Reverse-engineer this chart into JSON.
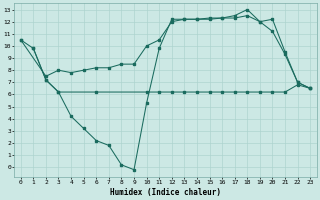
{
  "bg_color": "#cce8e4",
  "grid_color": "#aed4cf",
  "line_color": "#1a6b5e",
  "xlabel": "Humidex (Indice chaleur)",
  "xlim": [
    -0.5,
    23.5
  ],
  "ylim": [
    -0.8,
    13.5
  ],
  "xticks": [
    0,
    1,
    2,
    3,
    4,
    5,
    6,
    7,
    8,
    9,
    10,
    11,
    12,
    13,
    14,
    15,
    16,
    17,
    18,
    19,
    20,
    21,
    22,
    23
  ],
  "yticks": [
    0,
    1,
    2,
    3,
    4,
    5,
    6,
    7,
    8,
    9,
    10,
    11,
    12,
    13
  ],
  "series0_x": [
    0,
    1,
    2,
    3,
    4,
    5,
    6,
    7,
    8,
    9,
    10,
    11,
    12,
    13,
    14,
    15,
    16,
    17,
    18,
    19,
    20,
    21,
    22,
    23
  ],
  "series0_y": [
    10.5,
    9.8,
    7.2,
    6.2,
    4.2,
    3.2,
    2.2,
    1.8,
    0.2,
    -0.2,
    5.3,
    9.8,
    12.2,
    12.2,
    12.2,
    12.3,
    12.3,
    12.5,
    13.0,
    12.0,
    11.2,
    9.3,
    7.0,
    6.5
  ],
  "series1_x": [
    0,
    2,
    3,
    4,
    5,
    6,
    7,
    8,
    9,
    10,
    11,
    12,
    13,
    14,
    15,
    16,
    17,
    18,
    19,
    20,
    21,
    22,
    23
  ],
  "series1_y": [
    10.5,
    7.5,
    8.0,
    7.8,
    8.0,
    8.2,
    8.2,
    8.5,
    8.5,
    10.0,
    10.5,
    12.0,
    12.2,
    12.2,
    12.2,
    12.3,
    12.3,
    12.5,
    12.0,
    12.2,
    9.5,
    7.0,
    6.5
  ],
  "series2_x": [
    1,
    2,
    3,
    6,
    10,
    11,
    12,
    13,
    14,
    15,
    16,
    17,
    18,
    19,
    20,
    21,
    22,
    23
  ],
  "series2_y": [
    9.8,
    7.2,
    6.2,
    6.2,
    6.2,
    6.2,
    6.2,
    6.2,
    6.2,
    6.2,
    6.2,
    6.2,
    6.2,
    6.2,
    6.2,
    6.2,
    6.8,
    6.5
  ]
}
